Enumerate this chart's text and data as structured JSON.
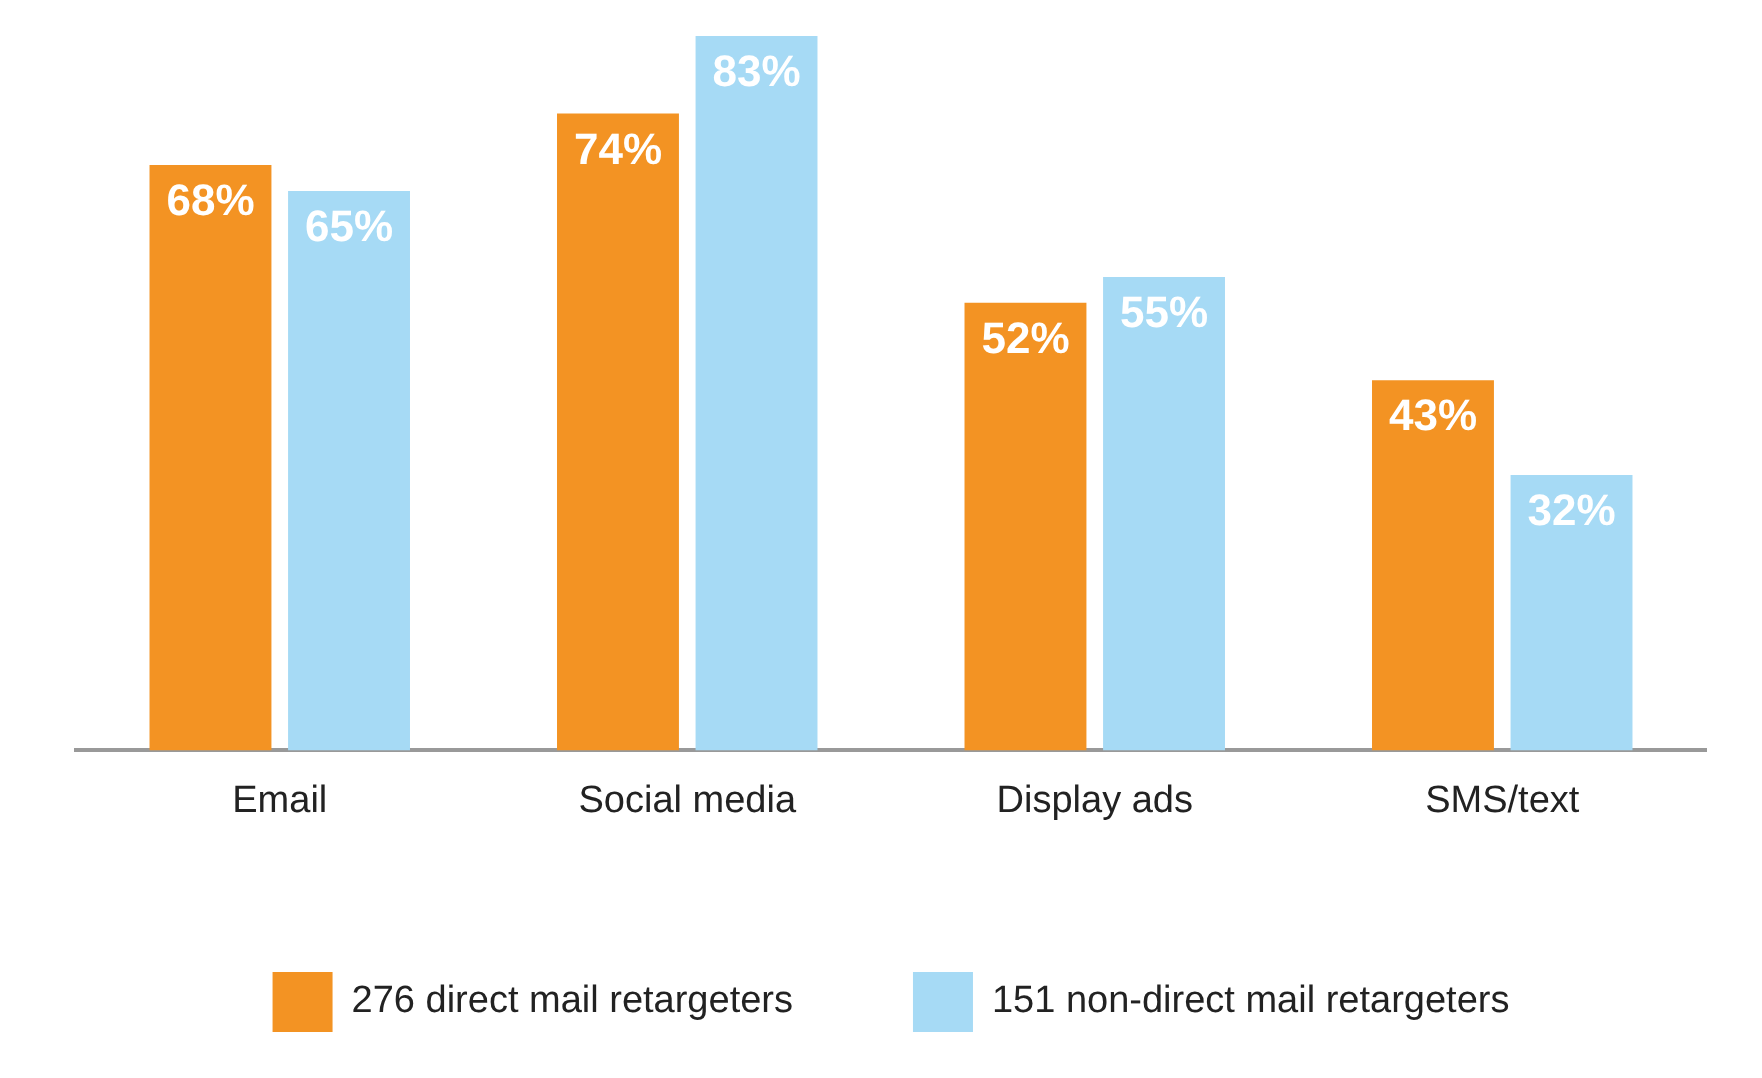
{
  "chart_data": {
    "type": "bar",
    "categories": [
      "Email",
      "Social media",
      "Display ads",
      "SMS/text"
    ],
    "series": [
      {
        "name": "276 direct mail retargeters",
        "color": "#f39323",
        "values": [
          68,
          74,
          52,
          43
        ],
        "value_labels": [
          "68%",
          "74%",
          "52%",
          "43%"
        ]
      },
      {
        "name": "151 non-direct mail retargeters",
        "color": "#a6daf5",
        "values": [
          65,
          83,
          55,
          32
        ],
        "value_labels": [
          "65%",
          "83%",
          "55%",
          "32%"
        ]
      }
    ],
    "grid": false,
    "legend": "bottom"
  }
}
